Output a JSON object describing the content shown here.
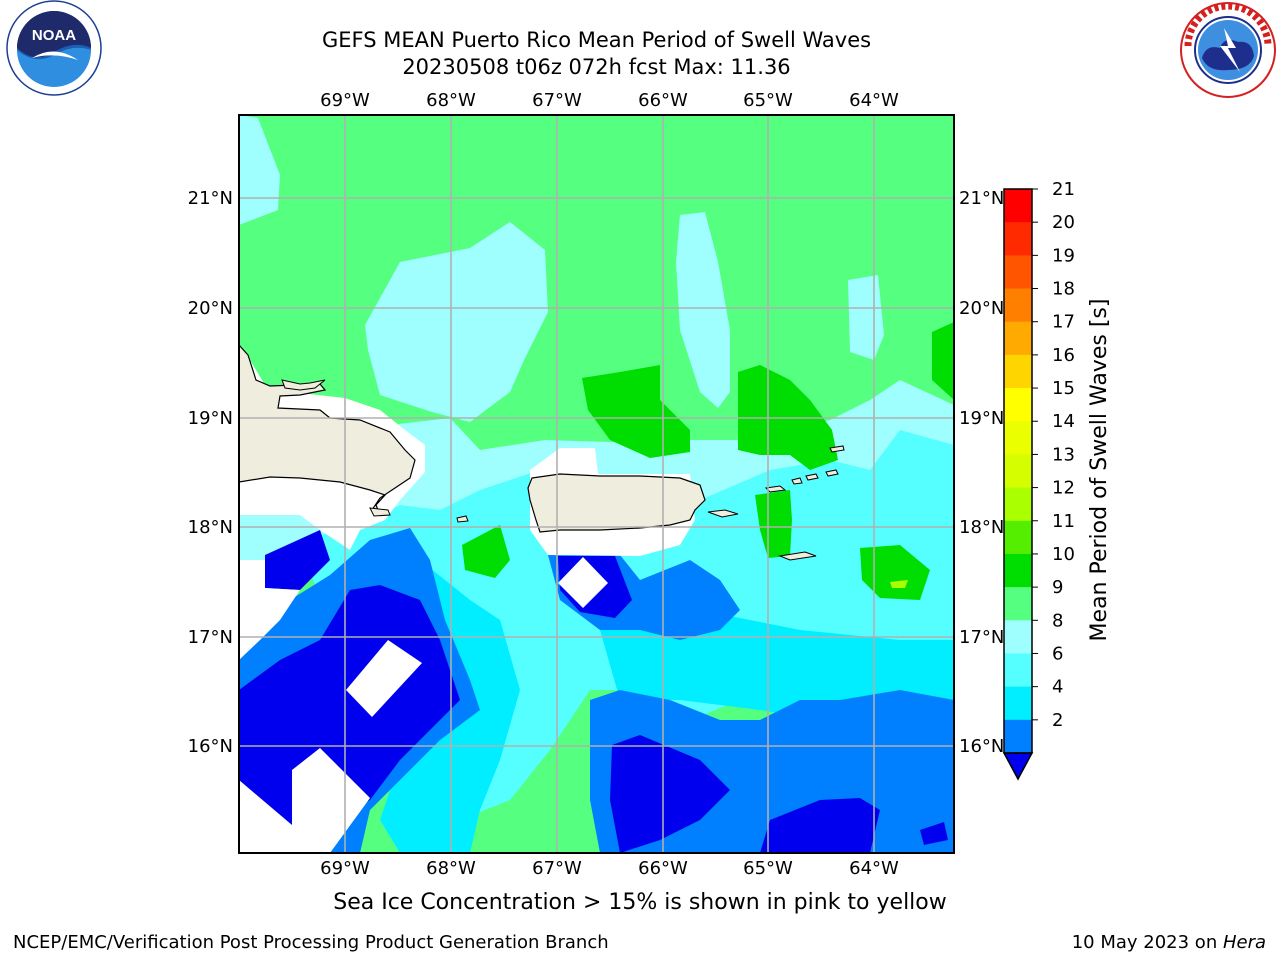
{
  "title": {
    "line1": "GEFS MEAN Puerto Rico Mean Period of Swell Waves",
    "line2": "20230508 t06z 072h fcst   Max: 11.36"
  },
  "logos": {
    "left_icon": "noaa-logo-icon",
    "left_text": "NOAA",
    "right_icon": "nws-logo-icon",
    "right_text": "NATIONAL WEATHER SERVICE"
  },
  "map": {
    "lon_labels": [
      "69°W",
      "68°W",
      "67°W",
      "66°W",
      "65°W",
      "64°W"
    ],
    "lat_labels": [
      "21°N",
      "20°N",
      "19°N",
      "18°N",
      "17°N",
      "16°N"
    ],
    "colors": {
      "land": "#efedde",
      "no_data": "#ffffff",
      "grid": "#b0b0b0"
    }
  },
  "colorbar": {
    "label": "Mean Period of Swell Waves [s]",
    "ticks": [
      "21",
      "20",
      "19",
      "18",
      "17",
      "16",
      "15",
      "14",
      "13",
      "12",
      "11",
      "10",
      "9",
      "8",
      "6",
      "4",
      "2"
    ],
    "band_colors": [
      "#ff0000",
      "#ff2a00",
      "#ff5500",
      "#ff8000",
      "#ffaa00",
      "#ffd500",
      "#ffff00",
      "#eaff00",
      "#d5ff00",
      "#aaff00",
      "#55ee00",
      "#00dd00",
      "#55ff80",
      "#9fffff",
      "#55ffff",
      "#00eeff",
      "#0080ff"
    ],
    "extend_color": "#0000ee"
  },
  "footer": {
    "note": "Sea Ice Concentration > 15% is shown in pink to yellow",
    "left": "NCEP/EMC/Verification Post Processing Product Generation Branch",
    "right_date": "10 May 2023 on ",
    "right_host": "Hera"
  }
}
